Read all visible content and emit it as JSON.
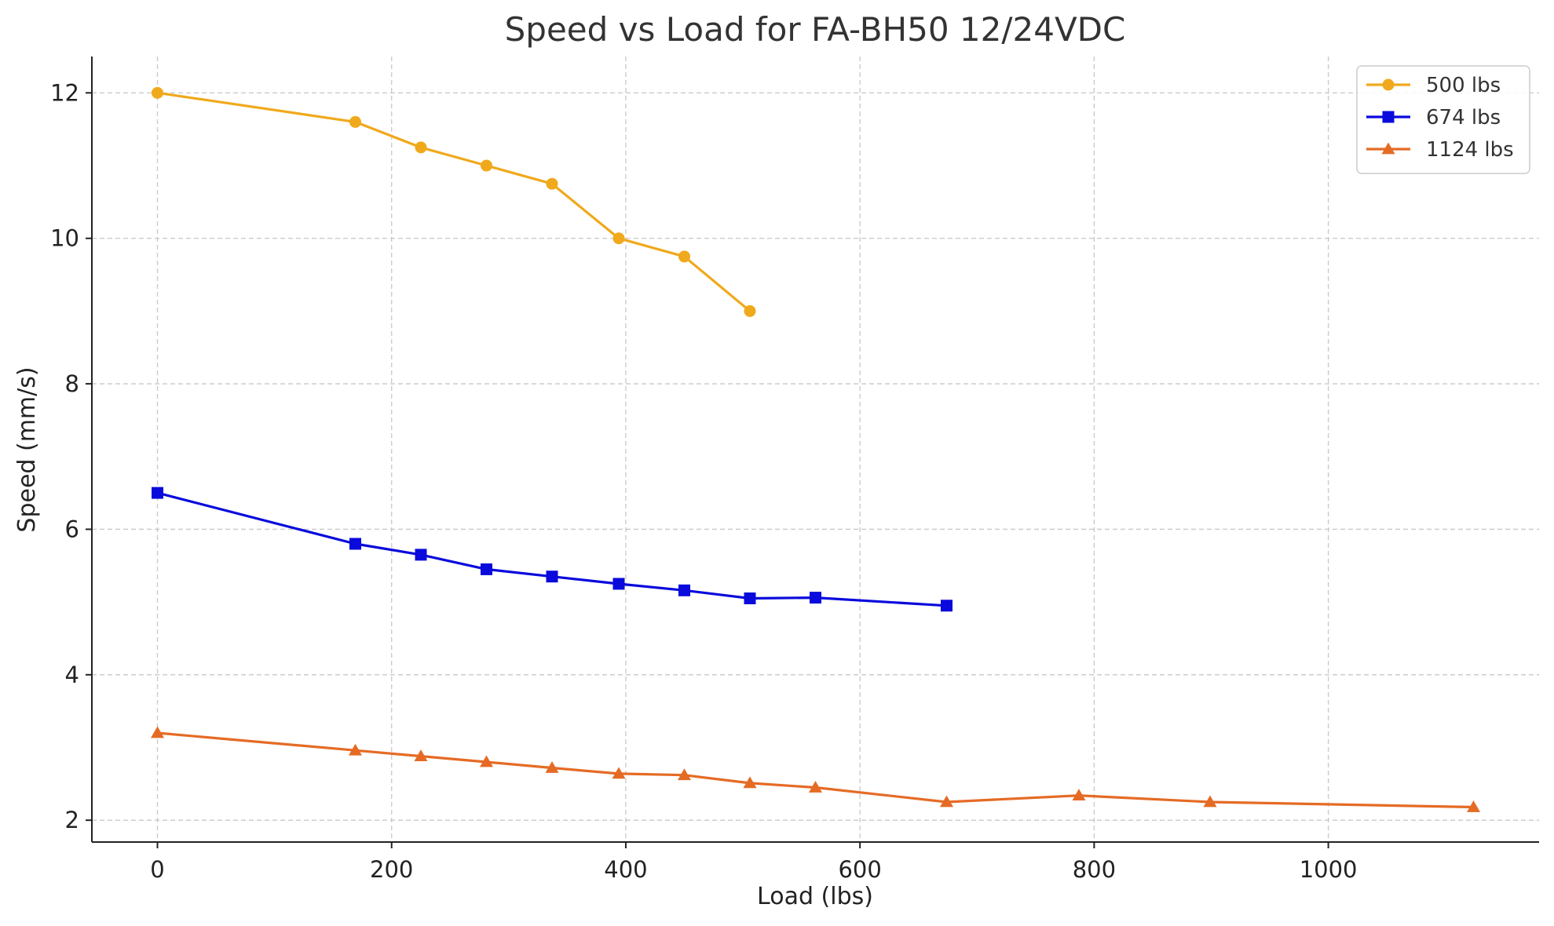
{
  "chart_data": {
    "type": "line",
    "title": "Speed vs Load for FA-BH50 12/24VDC",
    "xlabel": "Load (lbs)",
    "ylabel": "Speed (mm/s)",
    "xlim": [
      -56,
      1180
    ],
    "ylim": [
      1.7,
      12.5
    ],
    "xticks": [
      0,
      200,
      400,
      600,
      800,
      1000
    ],
    "yticks": [
      2,
      4,
      6,
      8,
      10,
      12
    ],
    "grid": true,
    "legend": "top-right",
    "series": [
      {
        "name": "500 lbs",
        "color": "#f0a91c",
        "marker": "circle",
        "points": [
          [
            0,
            12.0
          ],
          [
            169,
            11.6
          ],
          [
            225,
            11.25
          ],
          [
            281,
            11.0
          ],
          [
            337,
            10.75
          ],
          [
            394,
            10.0
          ],
          [
            450,
            9.75
          ],
          [
            506,
            9.0
          ]
        ]
      },
      {
        "name": "674 lbs",
        "color": "#0a0adc",
        "marker": "square",
        "points": [
          [
            0,
            6.5
          ],
          [
            169,
            5.8
          ],
          [
            225,
            5.65
          ],
          [
            281,
            5.45
          ],
          [
            337,
            5.35
          ],
          [
            394,
            5.25
          ],
          [
            450,
            5.16
          ],
          [
            506,
            5.05
          ],
          [
            562,
            5.06
          ],
          [
            674,
            4.95
          ]
        ]
      },
      {
        "name": "1124 lbs",
        "color": "#e56b25",
        "marker": "triangle",
        "points": [
          [
            0,
            3.2
          ],
          [
            169,
            2.96
          ],
          [
            225,
            2.88
          ],
          [
            281,
            2.8
          ],
          [
            337,
            2.72
          ],
          [
            394,
            2.64
          ],
          [
            450,
            2.62
          ],
          [
            506,
            2.51
          ],
          [
            562,
            2.45
          ],
          [
            674,
            2.25
          ],
          [
            787,
            2.34
          ],
          [
            899,
            2.25
          ],
          [
            1124,
            2.18
          ]
        ]
      }
    ]
  }
}
